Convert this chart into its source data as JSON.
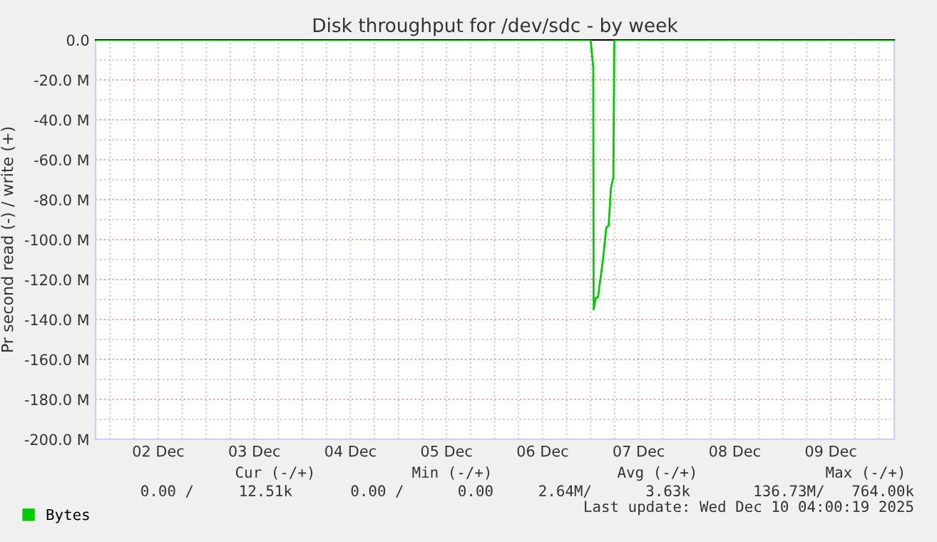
{
  "chart_data": {
    "type": "line",
    "title": "Disk throughput for /dev/sdc - by week",
    "ylabel": "Pr second read (-) / write (+)",
    "x": [
      "2025-12-01T20:30",
      "2025-12-07T00:00",
      "2025-12-07T00:40",
      "2025-12-07T00:45",
      "2025-12-07T01:20",
      "2025-12-07T01:50",
      "2025-12-07T03:05",
      "2025-12-07T03:55",
      "2025-12-07T04:30",
      "2025-12-07T05:05",
      "2025-12-07T05:40",
      "2025-12-07T05:55",
      "2025-12-10T03:50"
    ],
    "series": [
      {
        "name": "Bytes",
        "color": "#00cc00",
        "values": [
          0,
          0,
          -14,
          -135,
          -129,
          -129,
          -110,
          -94,
          -93,
          -74,
          -69,
          0,
          0
        ]
      }
    ],
    "xlim": [
      "2025-12-01T20:20",
      "2025-12-10T03:50"
    ],
    "xticks": [
      {
        "value": "2025-12-02T12:00",
        "label": "02 Dec"
      },
      {
        "value": "2025-12-03T12:00",
        "label": "03 Dec"
      },
      {
        "value": "2025-12-04T12:00",
        "label": "04 Dec"
      },
      {
        "value": "2025-12-05T12:00",
        "label": "05 Dec"
      },
      {
        "value": "2025-12-06T12:00",
        "label": "06 Dec"
      },
      {
        "value": "2025-12-07T12:00",
        "label": "07 Dec"
      },
      {
        "value": "2025-12-08T12:00",
        "label": "08 Dec"
      },
      {
        "value": "2025-12-09T12:00",
        "label": "09 Dec"
      }
    ],
    "ylim": [
      -200,
      0
    ],
    "yticks": [
      {
        "value": 0,
        "label": "0.0"
      },
      {
        "value": -20,
        "label": "-20.0 M"
      },
      {
        "value": -40,
        "label": "-40.0 M"
      },
      {
        "value": -60,
        "label": "-60.0 M"
      },
      {
        "value": -80,
        "label": "-80.0 M"
      },
      {
        "value": -100,
        "label": "-100.0 M"
      },
      {
        "value": -120,
        "label": "-120.0 M"
      },
      {
        "value": -140,
        "label": "-140.0 M"
      },
      {
        "value": -160,
        "label": "-160.0 M"
      },
      {
        "value": -180,
        "label": "-180.0 M"
      },
      {
        "value": -200,
        "label": "-200.0 M"
      }
    ],
    "grid": true,
    "legend": "bottom left",
    "line_style": "solid",
    "marker": "none",
    "annotations": [
      "Cur (-/+)",
      "Min (-/+)",
      "Avg (-/+)",
      "Max (-/+)",
      "0.00 /     12.51k",
      "0.00 /      0.00",
      "2.64M/      3.63k",
      "136.73M/   764.00k",
      "Last update: Wed Dec 10 04:00:19 2025"
    ]
  }
}
